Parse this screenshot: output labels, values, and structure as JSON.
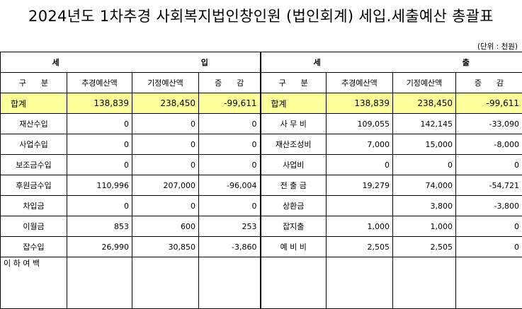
{
  "title": "2024년도 1차추경 사회복지법인창인원 (법인회계) 세입.세출예산 총괄표",
  "unit": "(단위 : 천원)",
  "revenue": {
    "heading_left": "세",
    "heading_right": "입",
    "col_label": "구      분",
    "col_budget": "추경예산액",
    "col_prev": "기정예산액",
    "col_diff": "증      감",
    "total": {
      "label": "합계",
      "budget": "138,839",
      "prev": "238,450",
      "diff": "-99,611"
    },
    "rows": [
      {
        "label": "재산수입",
        "budget": "0",
        "prev": "0",
        "diff": "0"
      },
      {
        "label": "사업수입",
        "budget": "0",
        "prev": "0",
        "diff": "0"
      },
      {
        "label": "보조금수입",
        "budget": "0",
        "prev": "0",
        "diff": "0"
      },
      {
        "label": "후원금수입",
        "budget": "110,996",
        "prev": "207,000",
        "diff": "-96,004"
      },
      {
        "label": "차입금",
        "budget": "0",
        "prev": "0",
        "diff": "0"
      },
      {
        "label": "이월금",
        "budget": "853",
        "prev": "600",
        "diff": "253"
      },
      {
        "label": "잡수입",
        "budget": "26,990",
        "prev": "30,850",
        "diff": "-3,860"
      }
    ],
    "footer": "이 하 여 백"
  },
  "expense": {
    "heading_left": "세",
    "heading_right": "출",
    "col_label": "구      분",
    "col_budget": "추경예산액",
    "col_prev": "기정예산액",
    "col_diff": "증      감",
    "total": {
      "label": "합계",
      "budget": "138,839",
      "prev": "238,450",
      "diff": "-99,611"
    },
    "rows": [
      {
        "label": "사 무 비",
        "budget": "109,055",
        "prev": "142,145",
        "diff": "-33,090"
      },
      {
        "label": "재산조성비",
        "budget": "7,000",
        "prev": "15,000",
        "diff": "-8,000"
      },
      {
        "label": "사업비",
        "budget": "0",
        "prev": "0",
        "diff": "0"
      },
      {
        "label": "전 출 금",
        "budget": "19,279",
        "prev": "74,000",
        "diff": "-54,721"
      },
      {
        "label": "상환금",
        "budget": "",
        "prev": "3,800",
        "diff": "-3,800"
      },
      {
        "label": "잡지출",
        "budget": "1,000",
        "prev": "1,000",
        "diff": "0"
      },
      {
        "label": "예 비 비",
        "budget": "2,505",
        "prev": "2,505",
        "diff": "0"
      }
    ]
  }
}
